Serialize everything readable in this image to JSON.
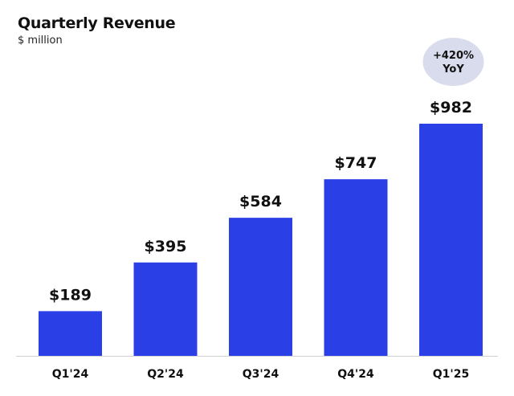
{
  "chart_data": {
    "type": "bar",
    "title": "Quarterly Revenue",
    "subtitle": "$ million",
    "categories": [
      "Q1'24",
      "Q2'24",
      "Q3'24",
      "Q4'24",
      "Q1'25"
    ],
    "values": [
      189,
      395,
      584,
      747,
      982
    ],
    "data_labels": [
      "$189",
      "$395",
      "$584",
      "$747",
      "$982"
    ],
    "ylim": [
      0,
      982
    ],
    "grid": false,
    "bar_color": "#2b3fe7",
    "annotation": {
      "line1": "+420%",
      "line2": "YoY",
      "background": "#d9dcec"
    }
  }
}
